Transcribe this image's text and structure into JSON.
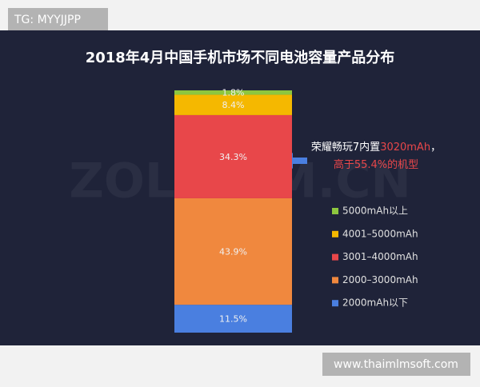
{
  "badge": "TG: MYYJJPP",
  "footer": "www.thaimlmsoft.com",
  "chart_data": {
    "type": "stacked-bar",
    "title": "2018年4月中国手机市场不同电池容量产品分布",
    "watermark": "ZOL.COM.CN",
    "series": [
      {
        "name": "2000mAh以下",
        "color": "#4a7fe0",
        "values": [
          11.5
        ],
        "value_labels": [
          "11.5%"
        ]
      },
      {
        "name": "2000–3000mAh",
        "color": "#f0883e",
        "values": [
          43.9
        ],
        "value_labels": [
          "43.9%"
        ]
      },
      {
        "name": "3001–4000mAh",
        "color": "#e8474a",
        "values": [
          34.3
        ],
        "value_labels": [
          "34.3%"
        ]
      },
      {
        "name": "4001–5000mAh",
        "color": "#f5b800",
        "values": [
          8.4
        ],
        "value_labels": [
          "8.4%"
        ]
      },
      {
        "name": "5000mAh以上",
        "color": "#8dc63f",
        "values": [
          1.8
        ],
        "value_labels": [
          "1.8%"
        ]
      }
    ],
    "annotation": [
      [
        {
          "text": "荣耀畅玩7内置",
          "color": "#ffffff"
        },
        {
          "text": "3020mAh",
          "color": "#e8474a"
        },
        {
          "text": "，",
          "color": "#ffffff"
        }
      ],
      [
        {
          "text": "高于55.4%的机型",
          "color": "#e8474a"
        }
      ]
    ]
  }
}
